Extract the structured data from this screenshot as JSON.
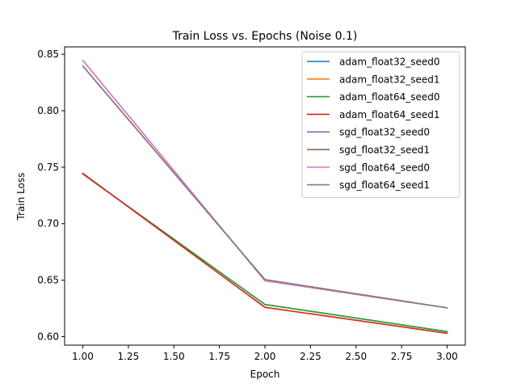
{
  "chart_data": {
    "type": "line",
    "title": "Train Loss vs. Epochs (Noise 0.1)",
    "xlabel": "Epoch",
    "ylabel": "Train Loss",
    "x": [
      1,
      2,
      3
    ],
    "xlim": [
      0.9,
      3.1
    ],
    "ylim": [
      0.5925,
      0.8565
    ],
    "xticks": [
      1.0,
      1.25,
      1.5,
      1.75,
      2.0,
      2.25,
      2.5,
      2.75,
      3.0
    ],
    "xtick_labels": [
      "1.00",
      "1.25",
      "1.50",
      "1.75",
      "2.00",
      "2.25",
      "2.50",
      "2.75",
      "3.00"
    ],
    "yticks": [
      0.6,
      0.65,
      0.7,
      0.75,
      0.8,
      0.85
    ],
    "ytick_labels": [
      "0.60",
      "0.65",
      "0.70",
      "0.75",
      "0.80",
      "0.85"
    ],
    "grid": false,
    "legend_position": "top-right",
    "series": [
      {
        "name": "adam_float32_seed0",
        "color": "#1f77b4",
        "values": [
          0.744,
          0.6285,
          0.6045
        ]
      },
      {
        "name": "adam_float32_seed1",
        "color": "#ff7f0e",
        "values": [
          0.7445,
          0.626,
          0.603
        ]
      },
      {
        "name": "adam_float64_seed0",
        "color": "#2ca02c",
        "values": [
          0.744,
          0.6285,
          0.6045
        ]
      },
      {
        "name": "adam_float64_seed1",
        "color": "#d62728",
        "values": [
          0.7445,
          0.626,
          0.603
        ]
      },
      {
        "name": "sgd_float32_seed0",
        "color": "#9467bd",
        "values": [
          0.8445,
          0.6495,
          0.6255
        ]
      },
      {
        "name": "sgd_float32_seed1",
        "color": "#8c564b",
        "values": [
          0.8395,
          0.6505,
          0.6255
        ]
      },
      {
        "name": "sgd_float64_seed0",
        "color": "#e377c2",
        "values": [
          0.8445,
          0.6495,
          0.6255
        ]
      },
      {
        "name": "sgd_float64_seed1",
        "color": "#7f7f7f",
        "values": [
          0.8395,
          0.6505,
          0.6255
        ]
      }
    ]
  }
}
